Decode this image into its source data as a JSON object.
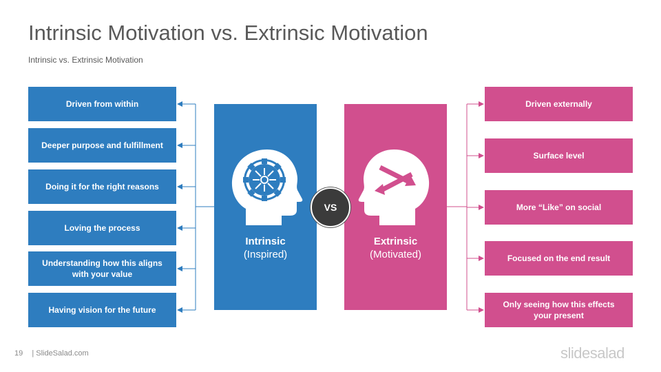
{
  "title": "Intrinsic Motivation vs. Extrinsic Motivation",
  "subtitle": "Intrinsic vs. Extrinsic Motivation",
  "left_items": [
    "Driven from within",
    "Deeper purpose and fulfillment",
    "Doing it for the right reasons",
    "Loving the process",
    "Understanding how this aligns with your value",
    "Having vision for the future"
  ],
  "right_items": [
    "Driven externally",
    "Surface level",
    "More “Like” on social",
    "Focused on the end result",
    "Only seeing how this effects your present"
  ],
  "intrinsic": {
    "name": "Intrinsic",
    "sub": "(Inspired)",
    "icon": "head-gear-icon"
  },
  "extrinsic": {
    "name": "Extrinsic",
    "sub": "(Motivated)",
    "icon": "head-arrows-icon"
  },
  "vs_label": "VS",
  "footer": {
    "page": "19",
    "site": "| SlideSalad.com"
  },
  "brand": "slidesalad",
  "colors": {
    "blue": "#2e7dbf",
    "pink": "#d14f8e",
    "dark": "#3b3b3b",
    "title": "#595959"
  }
}
